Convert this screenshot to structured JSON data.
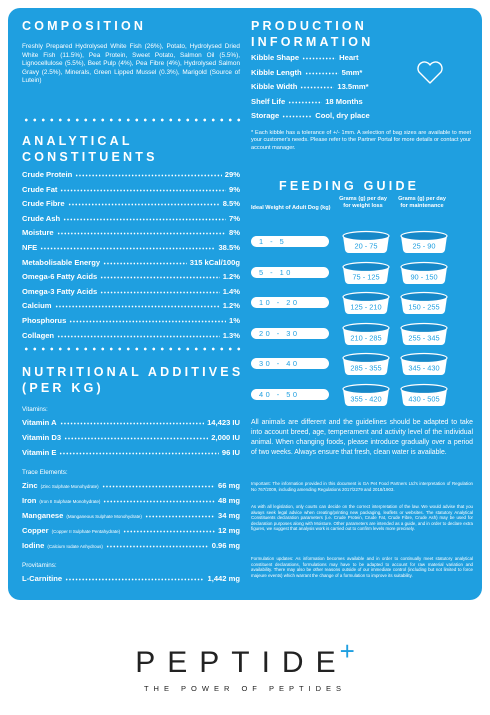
{
  "composition": {
    "title": "COMPOSITION",
    "text": "Freshly Prepared Hydrolysed White Fish (26%), Potato, Hydrolysed Dried White Fish (11.5%), Pea Protein, Sweet Potato, Salmon Oil (5.5%), Lignocellulose (5.5%), Beet Pulp (4%), Pea Fibre (4%), Hydrolysed Salmon Gravy (2.5%), Minerals, Green Lipped Mussel (0.3%), Marigold (Source of Lutein)"
  },
  "analytical": {
    "title_lines": [
      "ANALYTICAL",
      "CONSTITUENTS"
    ],
    "rows": [
      {
        "label": "Crude Protein",
        "value": "29%"
      },
      {
        "label": "Crude Fat",
        "value": "9%"
      },
      {
        "label": "Crude Fibre",
        "value": "8.5%"
      },
      {
        "label": "Crude Ash",
        "value": "7%"
      },
      {
        "label": "Moisture",
        "value": "8%"
      },
      {
        "label": "NFE",
        "value": "38.5%"
      },
      {
        "label": "Metabolisable Energy",
        "value": "315 kCal/100g"
      },
      {
        "label": "Omega-6 Fatty Acids",
        "value": "1.2%"
      },
      {
        "label": "Omega-3 Fatty Acids",
        "value": "1.4%"
      },
      {
        "label": "Calcium",
        "value": "1.2%"
      },
      {
        "label": "Phosphorus",
        "value": "1%"
      },
      {
        "label": "Collagen",
        "value": "1.3%"
      }
    ]
  },
  "additives": {
    "title_lines": [
      "NUTRITIONAL ADDITIVES",
      "(PER KG)"
    ],
    "vitamins": {
      "heading": "Vitamins:",
      "rows": [
        {
          "label": "Vitamin A",
          "value": "14,423 IU"
        },
        {
          "label": "Vitamin D3",
          "value": "2,000 IU"
        },
        {
          "label": "Vitamin E",
          "value": "96 IU"
        }
      ]
    },
    "trace": {
      "heading": "Trace Elements:",
      "rows": [
        {
          "label": "Zinc",
          "note": "(Zinc Sulphate Monohydrate)",
          "value": "66 mg"
        },
        {
          "label": "Iron",
          "note": "(Iron II Sulphate Monohydrate)",
          "value": "48 mg"
        },
        {
          "label": "Manganese",
          "note": "(Manganeous Sulphate Monohydrate)",
          "value": "34 mg"
        },
        {
          "label": "Copper",
          "note": "(Copper II Sulphate Pentahydrate)",
          "value": "12 mg"
        },
        {
          "label": "Iodine",
          "note": "(Calcium Iodate Anhydrous)",
          "value": "0.96 mg"
        }
      ]
    },
    "provitamins": {
      "heading": "Provitamins:",
      "rows": [
        {
          "label": "L-Carnitine",
          "value": "1,442 mg"
        }
      ]
    }
  },
  "production": {
    "title_lines": [
      "PRODUCTION",
      "INFORMATION"
    ],
    "rows": [
      {
        "label": "Kibble Shape",
        "value": "Heart"
      },
      {
        "label": "Kibble Length",
        "value": "5mm*"
      },
      {
        "label": "Kibble Width",
        "value": "13.5mm*"
      },
      {
        "label": "Shelf Life",
        "value": "18 Months"
      },
      {
        "label": "Storage",
        "value": "Cool, dry place"
      }
    ],
    "footnote": "* Each kibble has a tolerance of +/- 1mm. A selection of bag sizes are available to meet your customer's needs. Please refer to the Partner Portal for more details or contact your account manager."
  },
  "feeding": {
    "title": "FEEDING GUIDE",
    "headers": [
      "Ideal Weight of Adult Dog (kg)",
      "Grams (g) per day for weight loss",
      "Grams (g) per day for maintenance"
    ],
    "rows": [
      [
        "1 - 5",
        "20 - 75",
        "25 - 90"
      ],
      [
        "5 - 10",
        "75 - 125",
        "90 - 150"
      ],
      [
        "10 - 20",
        "125 - 210",
        "150 - 255"
      ],
      [
        "20 - 30",
        "210 - 285",
        "255 - 345"
      ],
      [
        "30 - 40",
        "285 - 355",
        "345 - 430"
      ],
      [
        "40 - 50",
        "355 - 420",
        "430 - 505"
      ]
    ],
    "advice": "All animals are different and the guidelines should be adapted to take into account breed, age, temperament and activity level of the individual animal. When changing foods, please introduce gradually over a period of two weeks. Always ensure that fresh, clean water is available."
  },
  "legal": [
    "Important: The information provided in this document is GA Pet Food Partners Ltd's interpretation of Regulation No 767/2009, including amending Regulations 2017/2279 and 2018/1903.",
    "As with all legislation, only courts can decide on the correct interpretation of the law. We would advise that you always seek legal advice when creating/printing new packaging, leaflets or websites. The statutory Analytical Constituents declaration parameters (i.e. Crude Protein, Crude Fat, Crude Fibre, Crude Ash) may be used for declaration purposes along with Moisture. Other parameters are intended as a guide, and in order to declare extra figures, we suggest that analysis work is carried out to confirm levels more precisely.",
    "Formulation updates: As information becomes available and in order to continually meet statutory analytical constituent declarations, formulations may have to be adapted to account for raw material variation and availability. There may also be other reasons outside of our immediate control (including but not limited to force majeure events) which warrant the change of a formulation to improve its suitability."
  ],
  "brand": {
    "name": "PEPTIDE",
    "mark": "+",
    "tagline": "THE POWER OF PEPTIDES"
  }
}
